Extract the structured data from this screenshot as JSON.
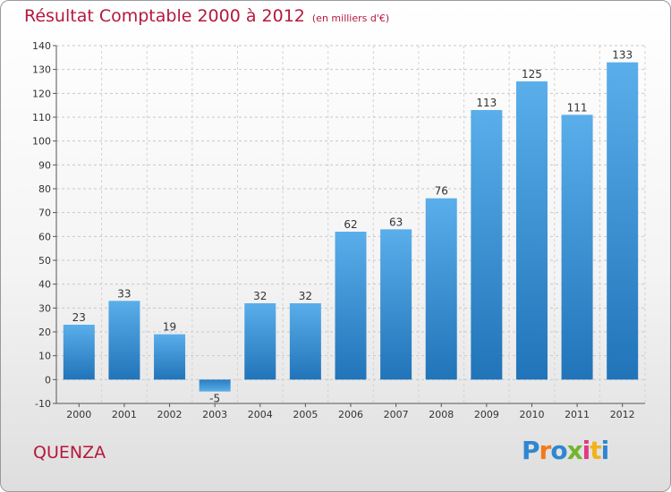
{
  "header": {
    "title": "Résultat Comptable 2000 à 2012",
    "subtitle": "(en milliers d'€)"
  },
  "footer": {
    "town": "QUENZA",
    "logo": {
      "text": "Proxiti",
      "colors": [
        "#2f86d1",
        "#ef7b1a",
        "#2f86d1",
        "#73b52c",
        "#e23a86",
        "#f2b21b",
        "#2f86d1"
      ]
    }
  },
  "chart_data": {
    "type": "bar",
    "categories": [
      "2000",
      "2001",
      "2002",
      "2003",
      "2004",
      "2005",
      "2006",
      "2007",
      "2008",
      "2009",
      "2010",
      "2011",
      "2012"
    ],
    "values": [
      23,
      33,
      19,
      -5,
      32,
      32,
      62,
      63,
      76,
      113,
      125,
      111,
      133
    ],
    "data_labels": [
      "23",
      "33",
      "19",
      "-5",
      "32",
      "32",
      "62",
      "63",
      "76",
      "113",
      "125",
      "111",
      "133"
    ],
    "title": "Résultat Comptable 2000 à 2012",
    "xlabel": "",
    "ylabel": "",
    "ylim": [
      -10,
      140
    ],
    "yticks": [
      "-10",
      "0",
      "10",
      "20",
      "30",
      "40",
      "50",
      "60",
      "70",
      "80",
      "90",
      "100",
      "110",
      "120",
      "130",
      "140"
    ],
    "grid": true,
    "legend": "none",
    "bar_color": "#3a90d6"
  }
}
